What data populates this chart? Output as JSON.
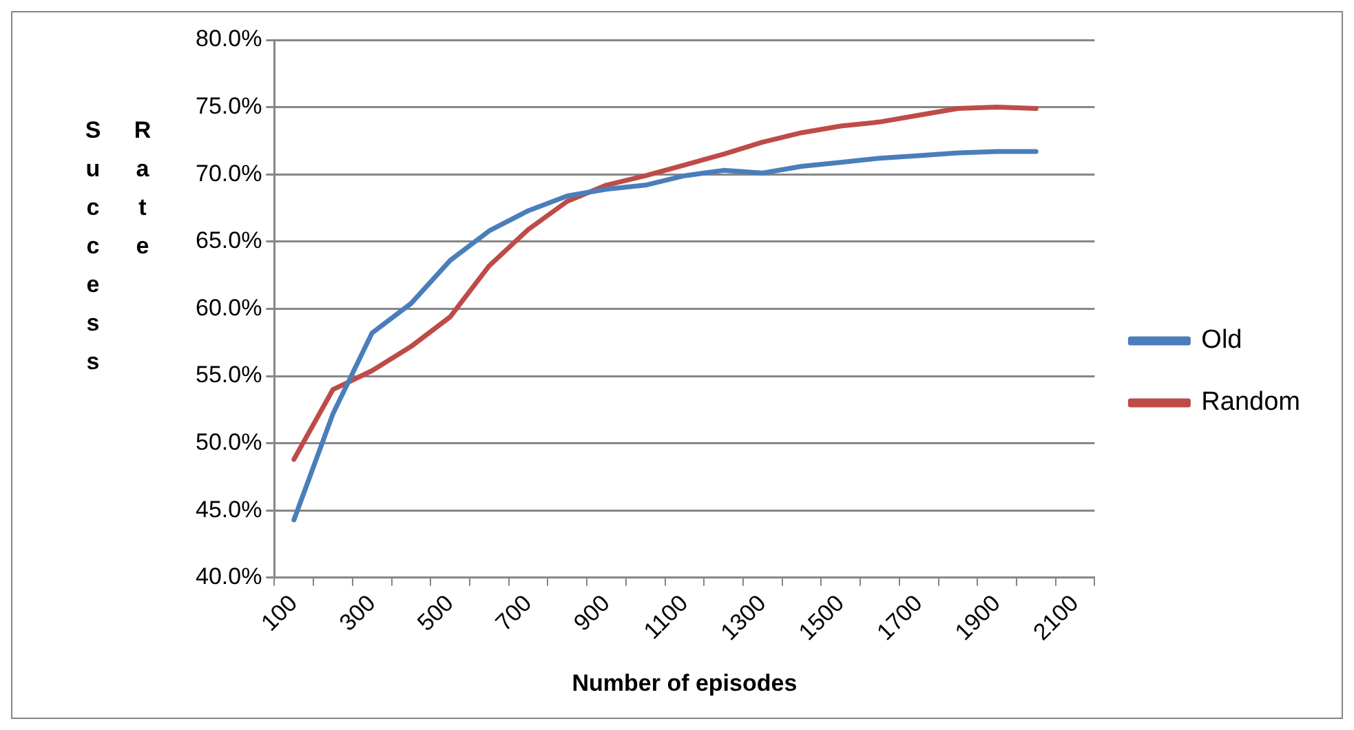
{
  "chart_data": {
    "type": "line",
    "xlabel": "Number of episodes",
    "ylabel": "Success Rate",
    "categories": [
      "100",
      null,
      "300",
      null,
      "500",
      null,
      "700",
      null,
      "900",
      null,
      "1100",
      null,
      "1300",
      null,
      "1500",
      null,
      "1700",
      null,
      "1900",
      null,
      "2100"
    ],
    "series": [
      {
        "name": "Old",
        "color": "#4a7ebb",
        "values": [
          44.3,
          52.2,
          58.2,
          60.4,
          63.6,
          65.8,
          67.3,
          68.4,
          68.9,
          69.2,
          69.9,
          70.3,
          70.1,
          70.6,
          70.9,
          71.2,
          71.4,
          71.6,
          71.7,
          71.7,
          null
        ]
      },
      {
        "name": "Random",
        "color": "#be4b48",
        "values": [
          48.8,
          54.0,
          55.4,
          57.2,
          59.4,
          63.2,
          65.9,
          68.0,
          69.2,
          69.9,
          70.7,
          71.5,
          72.4,
          73.1,
          73.6,
          73.9,
          74.4,
          74.9,
          75.0,
          74.9,
          null
        ]
      }
    ],
    "ylim": [
      40,
      80
    ],
    "yticks": [
      {
        "value": 40,
        "label": "40.0%"
      },
      {
        "value": 45,
        "label": "45.0%"
      },
      {
        "value": 50,
        "label": "50.0%"
      },
      {
        "value": 55,
        "label": "55.0%"
      },
      {
        "value": 60,
        "label": "60.0%"
      },
      {
        "value": 65,
        "label": "65.0%"
      },
      {
        "value": 70,
        "label": "70.0%"
      },
      {
        "value": 75,
        "label": "75.0%"
      },
      {
        "value": 80,
        "label": "80.0%"
      }
    ],
    "grid": "y",
    "legend": "right",
    "marker": "none",
    "line_style": "solid"
  }
}
